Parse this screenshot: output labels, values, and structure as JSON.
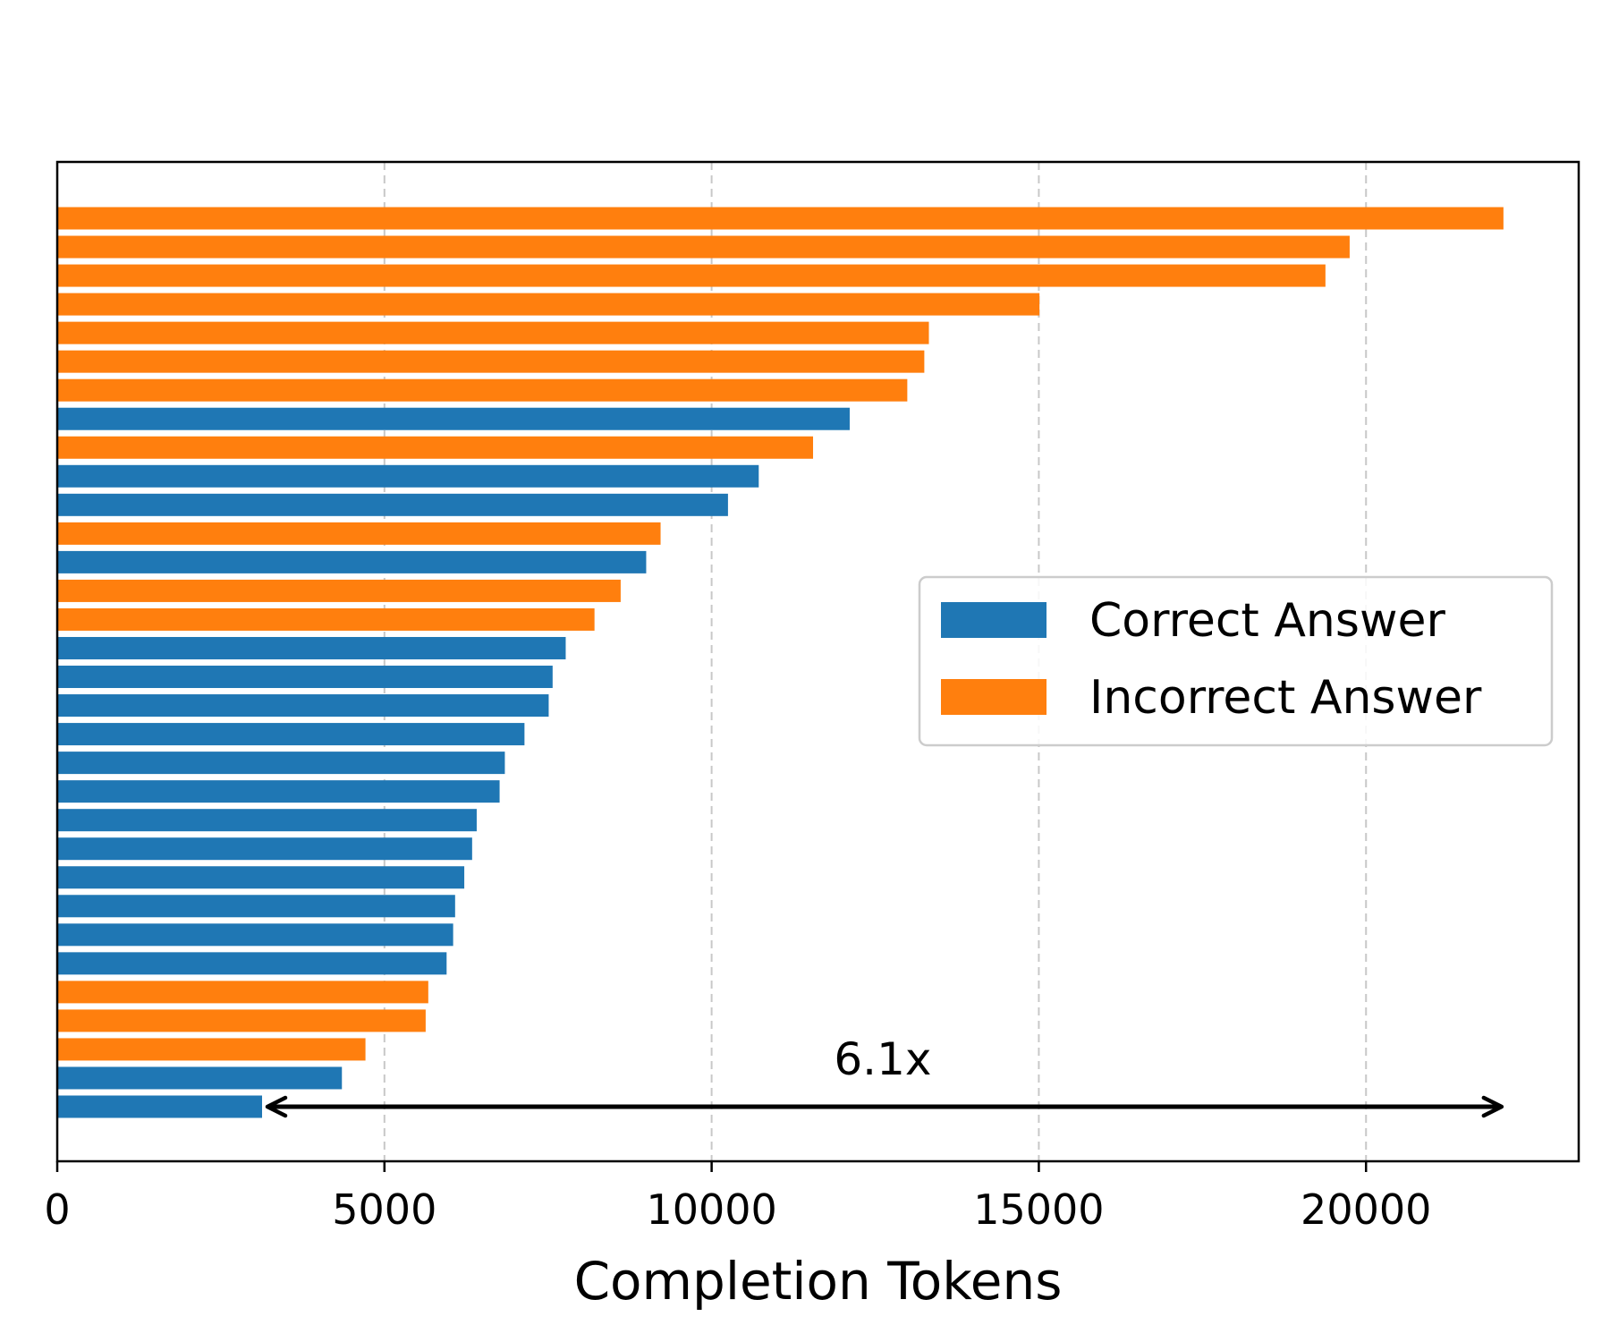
{
  "chart_data": {
    "type": "bar",
    "orientation": "horizontal",
    "xlabel": "Completion Tokens",
    "xlim": [
      0,
      23250
    ],
    "xticks": [
      0,
      5000,
      10000,
      15000,
      20000
    ],
    "xtick_labels": [
      "0",
      "5000",
      "10000",
      "15000",
      "20000"
    ],
    "grid": "vertical dashed",
    "legend_position": "right",
    "series": [
      {
        "name": "Correct Answer",
        "color": "#1f77b4"
      },
      {
        "name": "Incorrect Answer",
        "color": "#ff7f0e"
      }
    ],
    "bars": [
      {
        "value": 22100,
        "series": "Incorrect Answer"
      },
      {
        "value": 19750,
        "series": "Incorrect Answer"
      },
      {
        "value": 19380,
        "series": "Incorrect Answer"
      },
      {
        "value": 15010,
        "series": "Incorrect Answer"
      },
      {
        "value": 13320,
        "series": "Incorrect Answer"
      },
      {
        "value": 13250,
        "series": "Incorrect Answer"
      },
      {
        "value": 12990,
        "series": "Incorrect Answer"
      },
      {
        "value": 12110,
        "series": "Correct Answer"
      },
      {
        "value": 11550,
        "series": "Incorrect Answer"
      },
      {
        "value": 10720,
        "series": "Correct Answer"
      },
      {
        "value": 10250,
        "series": "Correct Answer"
      },
      {
        "value": 9220,
        "series": "Incorrect Answer"
      },
      {
        "value": 9000,
        "series": "Correct Answer"
      },
      {
        "value": 8610,
        "series": "Incorrect Answer"
      },
      {
        "value": 8210,
        "series": "Incorrect Answer"
      },
      {
        "value": 7770,
        "series": "Correct Answer"
      },
      {
        "value": 7570,
        "series": "Correct Answer"
      },
      {
        "value": 7510,
        "series": "Correct Answer"
      },
      {
        "value": 7140,
        "series": "Correct Answer"
      },
      {
        "value": 6840,
        "series": "Correct Answer"
      },
      {
        "value": 6760,
        "series": "Correct Answer"
      },
      {
        "value": 6410,
        "series": "Correct Answer"
      },
      {
        "value": 6340,
        "series": "Correct Answer"
      },
      {
        "value": 6220,
        "series": "Correct Answer"
      },
      {
        "value": 6080,
        "series": "Correct Answer"
      },
      {
        "value": 6050,
        "series": "Correct Answer"
      },
      {
        "value": 5950,
        "series": "Correct Answer"
      },
      {
        "value": 5670,
        "series": "Incorrect Answer"
      },
      {
        "value": 5630,
        "series": "Incorrect Answer"
      },
      {
        "value": 4710,
        "series": "Incorrect Answer"
      },
      {
        "value": 4350,
        "series": "Correct Answer"
      },
      {
        "value": 3130,
        "series": "Correct Answer"
      }
    ],
    "annotation": {
      "text": "6.1x",
      "arrow_from": 3130,
      "arrow_to": 22100
    }
  }
}
